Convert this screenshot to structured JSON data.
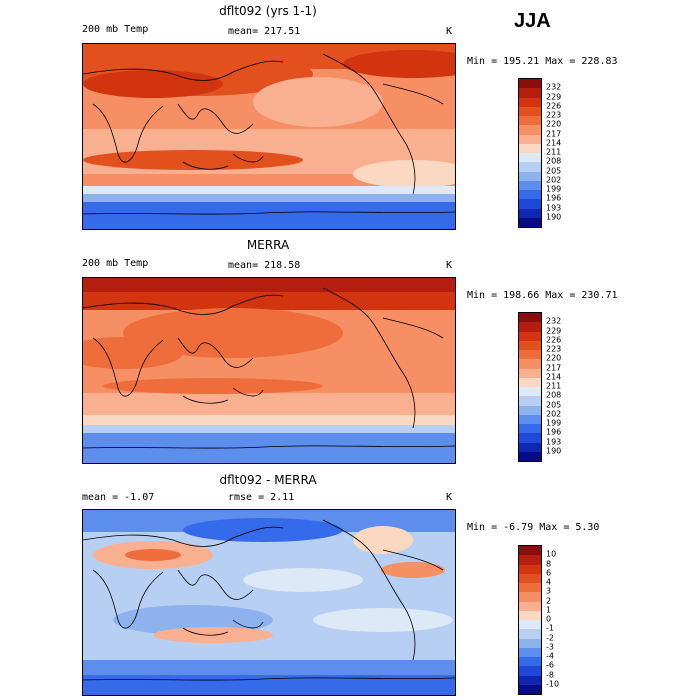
{
  "season": "JJA",
  "panels": [
    {
      "title": "dflt092 (yrs 1-1)",
      "variable": "200 mb Temp",
      "mean": "mean= 217.51",
      "units": "K",
      "min_max": "Min = 195.21 Max = 228.83",
      "colorbar_ticks": [
        "232",
        "229",
        "226",
        "223",
        "220",
        "217",
        "214",
        "211",
        "208",
        "205",
        "202",
        "199",
        "196",
        "193",
        "190"
      ]
    },
    {
      "title": "MERRA",
      "variable": "200 mb Temp",
      "mean": "mean= 218.58",
      "units": "K",
      "min_max": "Min = 198.66 Max = 230.71",
      "colorbar_ticks": [
        "232",
        "229",
        "226",
        "223",
        "220",
        "217",
        "214",
        "211",
        "208",
        "205",
        "202",
        "199",
        "196",
        "193",
        "190"
      ]
    },
    {
      "title": "dflt092 - MERRA",
      "mean": "mean =  -1.07",
      "rmse": "rmse =   2.11",
      "units": "K",
      "min_max": "Min =  -6.79 Max =   5.30",
      "colorbar_ticks": [
        "10",
        "8",
        "6",
        "4",
        "3",
        "2",
        "1",
        "0",
        "-1",
        "-2",
        "-3",
        "-4",
        "-6",
        "-8",
        "-10"
      ]
    }
  ],
  "palette": [
    "#8a0e0b",
    "#b51d0f",
    "#d1340f",
    "#e2501e",
    "#ef6d3b",
    "#f68f63",
    "#f9b090",
    "#fbd8c2",
    "#dde9f6",
    "#b6cff2",
    "#8db2ee",
    "#5d8ded",
    "#356bea",
    "#1f48d9",
    "#1027b3",
    "#060c85"
  ]
}
